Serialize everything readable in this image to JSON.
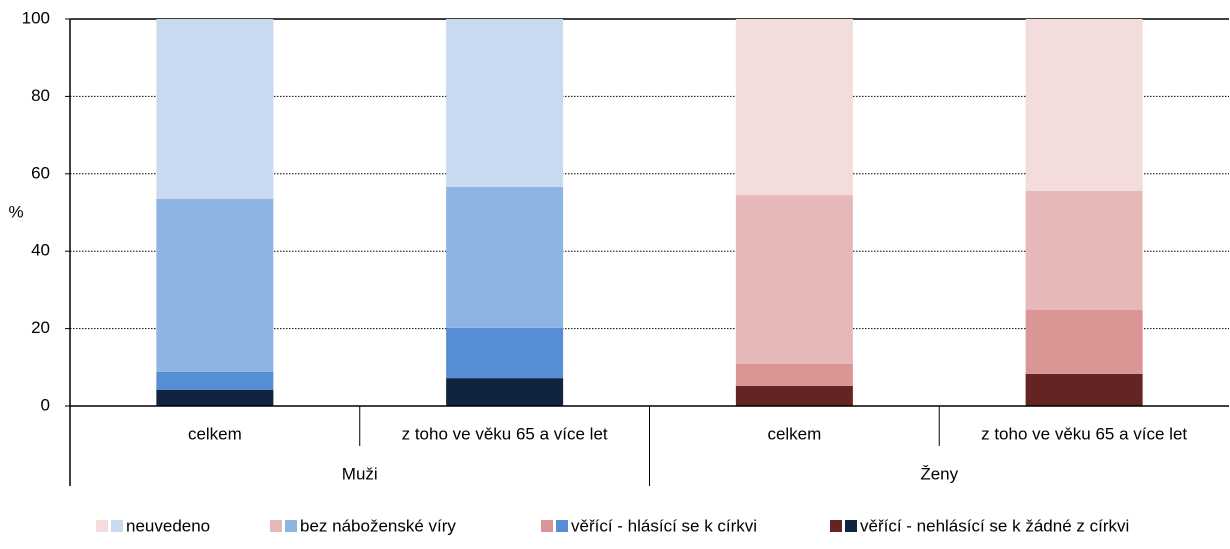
{
  "chart_data": {
    "type": "stacked_bar",
    "y_label": "%",
    "groups": [
      "Muži",
      "Ženy"
    ],
    "categories": [
      "celkem",
      "z toho ve věku 65 a více let",
      "celkem",
      "z toho ve věku 65 a více let"
    ],
    "series": [
      {
        "name": "věřící - nehlásící se k žádné z církvi",
        "colors": [
          "#10243f",
          "#10243f",
          "#632423",
          "#632423"
        ],
        "values": [
          4.2,
          7.2,
          5.2,
          8.3
        ]
      },
      {
        "name": "věřící - hlásící se k církvi",
        "colors": [
          "#558ed5",
          "#558ed5",
          "#d99694",
          "#d99694"
        ],
        "values": [
          4.6,
          13.0,
          5.7,
          16.5
        ]
      },
      {
        "name": "bez náboženské víry",
        "colors": [
          "#8eb4e3",
          "#8eb4e3",
          "#e6b9b8",
          "#e6b9b8"
        ],
        "values": [
          44.7,
          36.4,
          43.6,
          30.8
        ]
      },
      {
        "name": "neuvedeno",
        "colors": [
          "#c9d9f0",
          "#c9d9f0",
          "#f2dcdc",
          "#f2dcdc"
        ],
        "values": [
          46.5,
          43.4,
          45.5,
          44.4
        ]
      }
    ],
    "ylim": [
      0,
      100
    ],
    "yticks": [
      0,
      20,
      40,
      60,
      80,
      100
    ],
    "grid": true
  }
}
